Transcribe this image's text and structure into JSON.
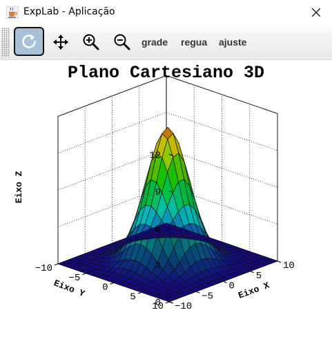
{
  "window": {
    "title": "ExpLab - Aplicação"
  },
  "toolbar": {
    "buttons": [
      {
        "name": "rotate",
        "icon": "rotate-icon",
        "active": true
      },
      {
        "name": "pan",
        "icon": "move-arrows-icon"
      },
      {
        "name": "zoom-in",
        "icon": "zoom-in-icon"
      },
      {
        "name": "zoom-out",
        "icon": "zoom-out-icon"
      }
    ],
    "grade_label": "grade",
    "regua_label": "regua",
    "ajuste_label": "ajuste"
  },
  "chart_data": {
    "type": "surface",
    "title": "Plano Cartesiano 3D",
    "xlabel": "Eixo X",
    "ylabel": "Eixo Y",
    "zlabel": "Eixo Z",
    "xlim": [
      -10,
      10
    ],
    "ylim": [
      -10,
      10
    ],
    "zlim": [
      0,
      12
    ],
    "xticks": [
      "−10",
      "−5",
      "0",
      "5",
      "10"
    ],
    "yticks": [
      "−10",
      "−5",
      "0",
      "5",
      "10"
    ],
    "zticks": [
      "0",
      "3",
      "6",
      "9",
      "12"
    ],
    "grid": true,
    "colormap": [
      "#1a0aa6",
      "#00c8c8",
      "#00c800",
      "#d2d200",
      "#e61e00"
    ],
    "function": "z = 11·exp(−(x²+y²)/16)",
    "grid_points": 21
  }
}
